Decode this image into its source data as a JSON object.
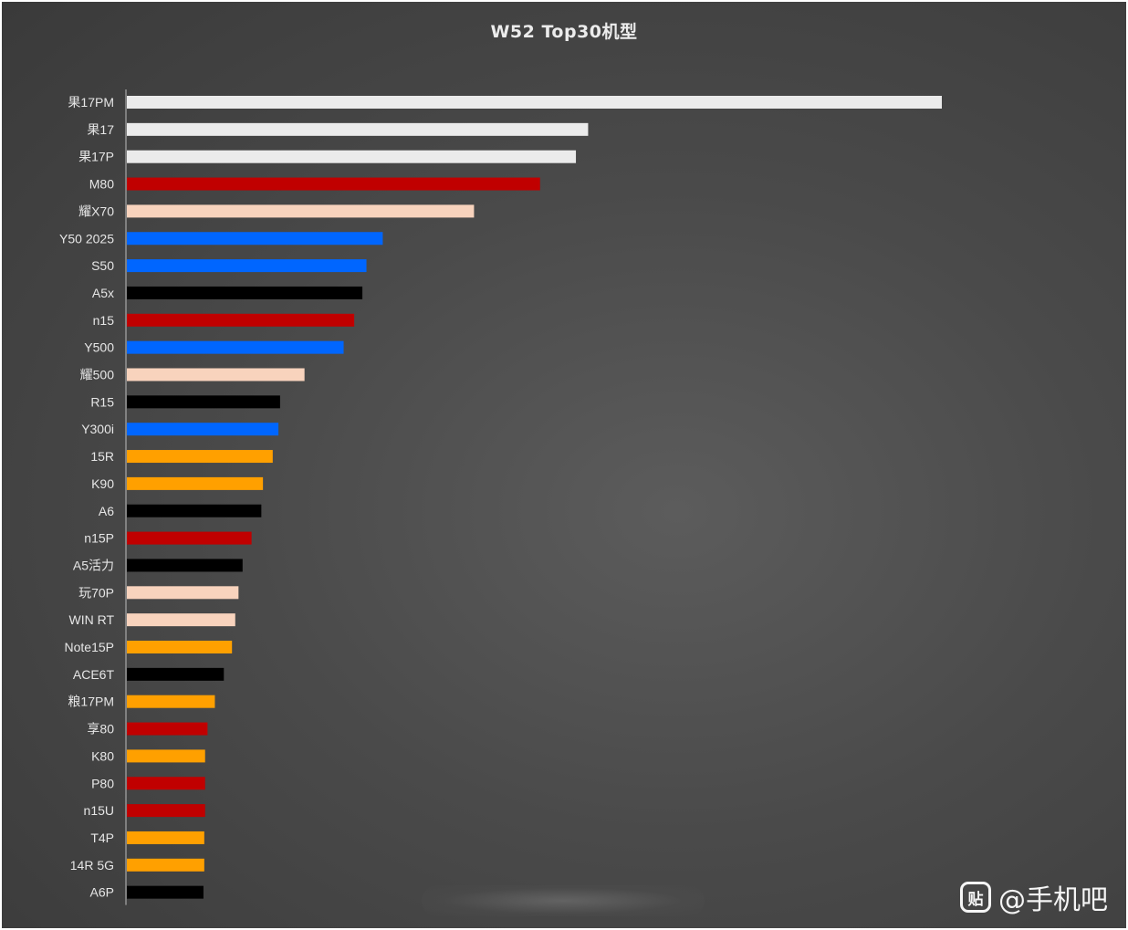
{
  "chart_data": {
    "type": "bar",
    "orientation": "horizontal",
    "title": "W52 Top30机型",
    "xlabel": "",
    "ylabel": "",
    "xlim": [
      0,
      100
    ],
    "grid": false,
    "legend": "none",
    "categories": [
      "果17PM",
      "果17",
      "果17P",
      "M80",
      "耀X70",
      "Y50 2025",
      "S50",
      "A5x",
      "n15",
      "Y500",
      "耀500",
      "R15",
      "Y300i",
      "15R",
      "K90",
      "A6",
      "n15P",
      "A5活力",
      "玩70P",
      "WIN RT",
      "Note15P",
      "ACE6T",
      "粮17PM",
      "享80",
      "K80",
      "P80",
      "n15U",
      "T4P",
      "14R 5G",
      "A6P"
    ],
    "values": [
      100,
      56.6,
      55.1,
      50.7,
      42.6,
      31.4,
      29.4,
      28.9,
      27.9,
      26.6,
      21.8,
      18.8,
      18.6,
      17.9,
      16.7,
      16.5,
      15.3,
      14.2,
      13.7,
      13.3,
      12.9,
      11.9,
      10.8,
      9.9,
      9.6,
      9.6,
      9.6,
      9.5,
      9.5,
      9.4
    ],
    "colors": [
      "#ebebeb",
      "#ebebeb",
      "#ebebeb",
      "#c00000",
      "#f8d3bd",
      "#0066ff",
      "#0066ff",
      "#000000",
      "#c00000",
      "#0066ff",
      "#f8d3bd",
      "#000000",
      "#0066ff",
      "#ffa000",
      "#ffa000",
      "#000000",
      "#c00000",
      "#000000",
      "#f8d3bd",
      "#f8d3bd",
      "#ffa000",
      "#000000",
      "#ffa000",
      "#c00000",
      "#ffa000",
      "#c00000",
      "#c00000",
      "#ffa000",
      "#ffa000",
      "#000000"
    ]
  },
  "watermark": {
    "icon_text": "贴",
    "text": "@手机吧"
  }
}
